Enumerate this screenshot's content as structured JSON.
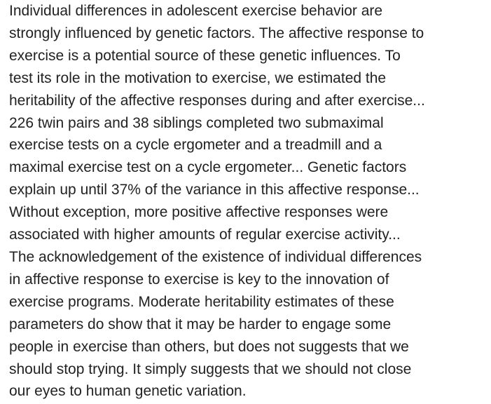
{
  "passage": {
    "lines": [
      "Individual differences in adolescent exercise behavior are",
      "strongly influenced by genetic factors. The affective response to",
      "exercise is a potential source of these genetic influences. To",
      "test its role in the motivation to exercise, we estimated the",
      "heritability of the affective responses during and after exercise...",
      "226 twin pairs and 38 siblings completed two submaximal",
      "exercise tests on a cycle ergometer and a treadmill and a",
      "maximal exercise test on a cycle ergometer... Genetic factors",
      "explain up until 37% of the variance in this affective response...",
      "Without exception, more positive affective responses were",
      "associated with higher amounts of regular exercise activity...",
      "The acknowledgement of the existence of individual differences",
      "in affective response to exercise is key to the innovation of",
      "exercise programs. Moderate heritability estimates of these",
      "parameters do show that it may be harder to engage some",
      "people in exercise than others, but does not suggests that we",
      "should stop trying. It simply suggests that we should not close",
      "our eyes to human genetic variation."
    ]
  }
}
